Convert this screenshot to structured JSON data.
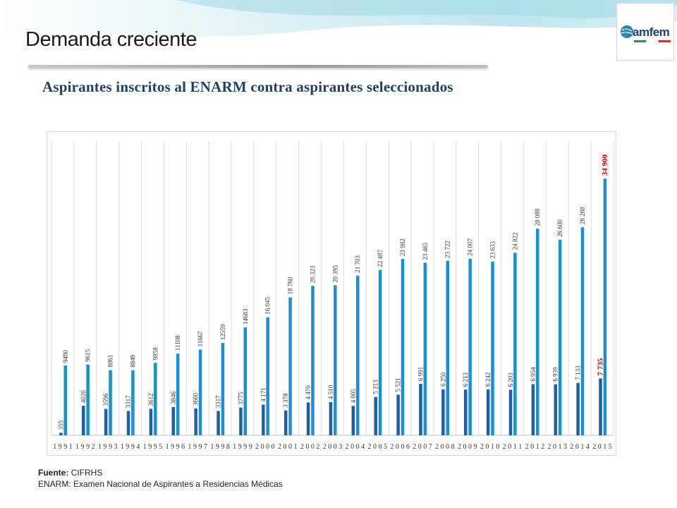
{
  "slide": {
    "title": "Demanda creciente",
    "logo_text": "amfem"
  },
  "chart_data": {
    "type": "bar",
    "title": "Aspirantes inscritos al ENARM contra aspirantes seleccionados",
    "categories": [
      "1991",
      "1992",
      "1993",
      "1994",
      "1995",
      "1996",
      "1997",
      "1998",
      "1999",
      "2000",
      "2001",
      "2002",
      "2003",
      "2004",
      "2005",
      "2006",
      "2007",
      "2008",
      "2009",
      "2010",
      "2011",
      "2012",
      "2013",
      "2014",
      "2015"
    ],
    "series": [
      {
        "values": [
          355,
          4020,
          3596,
          3317,
          3612,
          3846,
          3660,
          3317,
          3775,
          4171,
          3378,
          4470,
          4510,
          4005,
          5213,
          5521,
          6991,
          6250,
          6213,
          6242,
          6203,
          6954,
          6939,
          7133,
          7735
        ],
        "labels": [
          "355",
          "4020",
          "3596",
          "3317",
          "3612",
          "3846",
          "3660",
          "3317",
          "3775",
          "4 171",
          "3 378",
          "4 470",
          "4 510",
          "4 005",
          "5 213",
          "5 521",
          "6 991",
          "6 250",
          "6 213",
          "6 242",
          "6 203",
          "6 954",
          "6 939",
          "7 133",
          "7 735"
        ],
        "color": "#1f5fa8"
      },
      {
        "values": [
          9490,
          9615,
          8861,
          8849,
          9858,
          11108,
          11667,
          12559,
          14683,
          16045,
          18760,
          20323,
          20395,
          21703,
          22487,
          23982,
          23465,
          23722,
          24007,
          23633,
          24822,
          28088,
          26600,
          28288,
          34900
        ],
        "labels": [
          "9490",
          "9615",
          "8861",
          "8849",
          "9858",
          "11108",
          "11667",
          "12559",
          "14683",
          "16 045",
          "18 760",
          "20 323",
          "20 395",
          "21 703",
          "22 487",
          "23 982",
          "23 465",
          "23 722",
          "24 007",
          "23 633",
          "24 822",
          "28 088",
          "26 600",
          "28 288",
          "34 900"
        ],
        "color": "#1b90d0"
      }
    ],
    "highlight": {
      "category": "2015",
      "color": "#c00000"
    },
    "ylim": [
      0,
      40000
    ],
    "grid": "vertical",
    "legend": "none"
  },
  "source": {
    "label": "Fuente:",
    "value": "CIFRHS",
    "note": "ENARM: Examen Nacional de Aspirantes a Residencias Médicas"
  }
}
